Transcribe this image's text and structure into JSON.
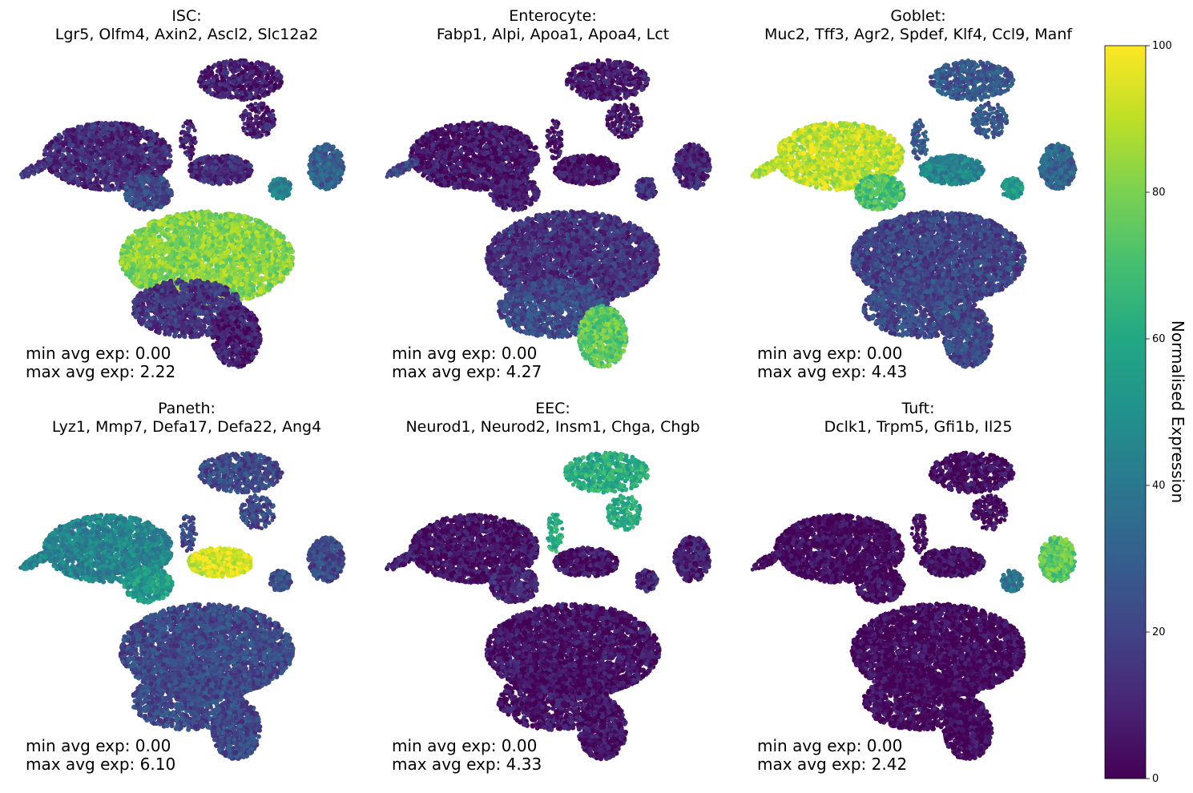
{
  "chart_data": {
    "type": "scatter",
    "colormap": "viridis",
    "colorbar": {
      "label": "Normalised Expression",
      "ticks": [
        "0",
        "20",
        "40",
        "60",
        "80",
        "100"
      ],
      "range": [
        0,
        100
      ]
    },
    "panels": [
      {
        "title": "ISC:",
        "genes": "Lgr5, Olfm4, Axin2, Ascl2, Slc12a2",
        "min_text": "min avg exp: 0.00",
        "max_text": "max avg exp: 2.22",
        "cluster_expression": {
          "goblet_cluster": 12,
          "tail": 15,
          "paneth_cluster": 12,
          "upper_branch": 8,
          "left_branch": 22,
          "tuft_cluster": 30,
          "tuft_small": 45,
          "isc_core": 82,
          "lower_body": 15,
          "bottom_tip": 8
        }
      },
      {
        "title": "Enterocyte:",
        "genes": "Fabp1, Alpi, Apoa1, Apoa4, Lct",
        "min_text": "min avg exp: 0.00",
        "max_text": "max avg exp: 4.27",
        "cluster_expression": {
          "goblet_cluster": 6,
          "tail": 20,
          "paneth_cluster": 6,
          "upper_branch": 6,
          "left_branch": 8,
          "tuft_cluster": 10,
          "tuft_small": 12,
          "isc_core": 14,
          "lower_body": 22,
          "bottom_tip": 75
        }
      },
      {
        "title": "Goblet:",
        "genes": "Muc2, Tff3, Agr2, Spdef, Klf4, Ccl9, Manf",
        "min_text": "min avg exp: 0.00",
        "max_text": "max avg exp: 4.43",
        "cluster_expression": {
          "goblet_cluster": 90,
          "tail": 88,
          "paneth_cluster": 45,
          "upper_branch": 28,
          "left_branch": 70,
          "tuft_cluster": 32,
          "tuft_small": 55,
          "isc_core": 20,
          "lower_body": 22,
          "bottom_tip": 22
        }
      },
      {
        "title": "Paneth:",
        "genes": "Lyz1, Mmp7, Defa17, Defa22, Ang4",
        "min_text": "min avg exp: 0.00",
        "max_text": "max avg exp: 6.10",
        "cluster_expression": {
          "goblet_cluster": 45,
          "tail": 45,
          "paneth_cluster": 95,
          "upper_branch": 22,
          "left_branch": 55,
          "tuft_cluster": 22,
          "tuft_small": 25,
          "isc_core": 22,
          "lower_body": 22,
          "bottom_tip": 22
        }
      },
      {
        "title": "EEC:",
        "genes": "Neurod1, Neurod2, Insm1, Chga, Chgb",
        "min_text": "min avg exp: 0.00",
        "max_text": "max avg exp: 4.33",
        "cluster_expression": {
          "goblet_cluster": 5,
          "tail": 8,
          "paneth_cluster": 5,
          "upper_branch": 62,
          "left_branch": 10,
          "tuft_cluster": 8,
          "tuft_small": 10,
          "isc_core": 5,
          "lower_body": 5,
          "bottom_tip": 5
        }
      },
      {
        "title": "Tuft:",
        "genes": "Dclk1, Trpm5, Gfi1b, Il25",
        "min_text": "min avg exp: 0.00",
        "max_text": "max avg exp: 2.42",
        "cluster_expression": {
          "goblet_cluster": 2,
          "tail": 3,
          "paneth_cluster": 3,
          "upper_branch": 3,
          "left_branch": 3,
          "tuft_cluster": 75,
          "tuft_small": 40,
          "isc_core": 2,
          "lower_body": 2,
          "bottom_tip": 2
        }
      }
    ]
  }
}
